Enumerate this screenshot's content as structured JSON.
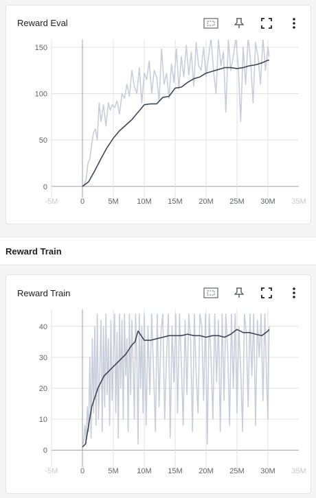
{
  "section": {
    "title": "Reward Train"
  },
  "colors": {
    "raw": "#c7ceda",
    "smoothed": "#3c4556",
    "grid": "#e0e0e0",
    "axis": "#9e9e9e"
  },
  "toolbar_icons": [
    "fit-domain-icon",
    "pin-icon",
    "fullscreen-icon",
    "more-vert-icon"
  ],
  "chart_data": [
    {
      "type": "line",
      "title": "Reward Eval",
      "xlabel": "",
      "ylabel": "",
      "xlim": [
        -5000000,
        35000000
      ],
      "ylim": [
        -12,
        158
      ],
      "x_ticks": [
        "-5M",
        "0",
        "5M",
        "10M",
        "15M",
        "20M",
        "25M",
        "30M",
        "35M"
      ],
      "y_ticks": [
        "0",
        "50",
        "100",
        "150"
      ],
      "grid": true,
      "legend": "none",
      "series": [
        {
          "role": "raw",
          "x": [
            0,
            300000,
            600000,
            900000,
            1200000,
            1500000,
            1800000,
            2100000,
            2400000,
            2700000,
            3000000,
            3400000,
            3800000,
            4200000,
            4500000,
            4800000,
            5200000,
            5600000,
            6000000,
            6400000,
            6800000,
            7200000,
            7600000,
            8000000,
            8400000,
            8800000,
            9200000,
            9600000,
            10000000,
            10400000,
            10800000,
            11200000,
            11600000,
            12000000,
            12400000,
            12800000,
            13200000,
            13600000,
            14000000,
            14400000,
            14800000,
            15200000,
            15600000,
            16000000,
            16400000,
            16800000,
            17200000,
            17600000,
            18000000,
            18400000,
            18800000,
            19200000,
            19600000,
            20000000,
            20400000,
            20800000,
            21200000,
            21600000,
            22000000,
            22400000,
            22800000,
            23200000,
            23600000,
            24000000,
            24400000,
            24800000,
            25200000,
            25600000,
            26000000,
            26400000,
            26800000,
            27200000,
            27600000,
            28000000,
            28400000,
            28800000,
            29200000,
            29600000,
            30000000,
            30200000
          ],
          "values": [
            0,
            2,
            8,
            25,
            30,
            45,
            58,
            62,
            50,
            90,
            70,
            88,
            65,
            90,
            82,
            88,
            85,
            92,
            78,
            100,
            95,
            110,
            97,
            125,
            108,
            100,
            128,
            90,
            122,
            115,
            135,
            100,
            125,
            118,
            92,
            148,
            110,
            122,
            95,
            132,
            112,
            148,
            105,
            140,
            118,
            152,
            120,
            145,
            108,
            155,
            130,
            125,
            150,
            118,
            140,
            160,
            125,
            100,
            158,
            130,
            145,
            80,
            158,
            125,
            140,
            160,
            130,
            70,
            150,
            110,
            160,
            135,
            90,
            155,
            140,
            110,
            160,
            125,
            150,
            140
          ]
        },
        {
          "role": "smoothed",
          "x": [
            0,
            1000000,
            2000000,
            3000000,
            4000000,
            5000000,
            6000000,
            7000000,
            8000000,
            9000000,
            10000000,
            11000000,
            12000000,
            13000000,
            14000000,
            15000000,
            16000000,
            17000000,
            18000000,
            19000000,
            20000000,
            21000000,
            22000000,
            23000000,
            24000000,
            25000000,
            26000000,
            27000000,
            28000000,
            29000000,
            30000000,
            30200000
          ],
          "values": [
            0,
            5,
            17,
            30,
            42,
            52,
            60,
            66,
            72,
            80,
            88,
            89,
            89,
            96,
            97,
            106,
            107,
            112,
            116,
            118,
            122,
            124,
            126,
            128,
            128,
            127,
            128,
            130,
            131,
            133,
            136,
            136
          ]
        }
      ]
    },
    {
      "type": "line",
      "title": "Reward Train",
      "xlabel": "",
      "ylabel": "",
      "xlim": [
        -5000000,
        35000000
      ],
      "ylim": [
        -5.5,
        45.5
      ],
      "x_ticks": [
        "-5M",
        "0",
        "5M",
        "10M",
        "15M",
        "20M",
        "25M",
        "30M",
        "35M"
      ],
      "y_ticks": [
        "0",
        "10",
        "20",
        "30",
        "40"
      ],
      "grid": true,
      "legend": "none",
      "series": [
        {
          "role": "raw",
          "x": [
            0,
            200000,
            400000,
            600000,
            800000,
            1000000,
            1200000,
            1400000,
            1600000,
            1800000,
            2000000,
            2200000,
            2400000,
            2600000,
            2800000,
            3000000,
            3200000,
            3400000,
            3600000,
            3800000,
            4000000,
            4200000,
            4400000,
            4600000,
            4800000,
            5000000,
            5200000,
            5400000,
            5600000,
            5800000,
            6000000,
            6200000,
            6400000,
            6600000,
            6800000,
            7000000,
            7200000,
            7400000,
            7600000,
            7800000,
            8000000,
            8200000,
            8400000,
            8600000,
            8800000,
            9000000,
            9200000,
            9400000,
            9600000,
            9800000,
            10000000,
            10300000,
            10600000,
            10900000,
            11200000,
            11500000,
            11800000,
            12100000,
            12400000,
            12700000,
            13000000,
            13300000,
            13600000,
            13900000,
            14200000,
            14500000,
            14800000,
            15100000,
            15400000,
            15700000,
            16000000,
            16300000,
            16600000,
            16900000,
            17200000,
            17500000,
            17800000,
            18100000,
            18400000,
            18700000,
            19000000,
            19300000,
            19600000,
            19900000,
            20200000,
            20500000,
            20800000,
            21100000,
            21400000,
            21700000,
            22000000,
            22300000,
            22600000,
            22900000,
            23200000,
            23500000,
            23800000,
            24100000,
            24400000,
            24700000,
            25000000,
            25300000,
            25600000,
            25900000,
            26200000,
            26500000,
            26800000,
            27100000,
            27400000,
            27700000,
            28000000,
            28300000,
            28600000,
            28900000,
            29200000,
            29500000,
            29800000,
            30000000,
            30200000
          ],
          "values": [
            1,
            3,
            8,
            2,
            14,
            6,
            30,
            4,
            36,
            12,
            40,
            8,
            44,
            10,
            25,
            42,
            6,
            40,
            14,
            44,
            18,
            36,
            8,
            42,
            16,
            30,
            44,
            12,
            38,
            4,
            44,
            20,
            42,
            10,
            44,
            24,
            36,
            6,
            44,
            18,
            42,
            28,
            10,
            44,
            30,
            2,
            44,
            20,
            40,
            12,
            44,
            8,
            40,
            18,
            44,
            26,
            6,
            44,
            14,
            38,
            44,
            10,
            30,
            44,
            4,
            40,
            22,
            44,
            12,
            44,
            28,
            8,
            42,
            18,
            44,
            36,
            6,
            44,
            24,
            12,
            44,
            40,
            16,
            44,
            2,
            44,
            30,
            10,
            44,
            22,
            42,
            6,
            44,
            16,
            44,
            32,
            8,
            44,
            20,
            44,
            12,
            40,
            26,
            6,
            44,
            38,
            14,
            44,
            24,
            44,
            8,
            42,
            30,
            44,
            16,
            44,
            22,
            10,
            40
          ],
          "note": ""
        },
        {
          "role": "smoothed",
          "x": [
            0,
            500000,
            1000000,
            1500000,
            2000000,
            2500000,
            3000000,
            3500000,
            4000000,
            4500000,
            5000000,
            6000000,
            7000000,
            8000000,
            8500000,
            9000000,
            9500000,
            10000000,
            11000000,
            12000000,
            13000000,
            14000000,
            15000000,
            16000000,
            17000000,
            18000000,
            19000000,
            20000000,
            21000000,
            22000000,
            23000000,
            24000000,
            25000000,
            26000000,
            27000000,
            28000000,
            29000000,
            30000000,
            30200000
          ],
          "values": [
            1,
            2,
            8,
            14,
            17,
            20,
            22,
            24,
            25,
            26,
            27,
            29,
            31,
            34,
            35,
            38.5,
            37,
            35.5,
            35.5,
            36,
            36.5,
            37,
            37,
            37,
            37.5,
            37,
            37,
            36.5,
            37,
            37,
            36.5,
            37.5,
            39,
            38,
            38,
            37.5,
            37,
            38.5,
            39
          ]
        }
      ]
    }
  ]
}
